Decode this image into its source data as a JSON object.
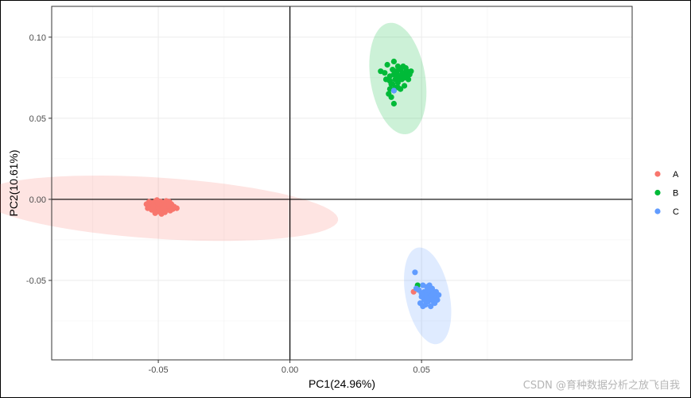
{
  "chart_data": {
    "type": "scatter",
    "title": "",
    "xlabel": "PC1(24.96%)",
    "ylabel": "PC2(10.61%)",
    "xlim": [
      -0.0905,
      0.13
    ],
    "ylim": [
      -0.099,
      0.119
    ],
    "x_ticks": [
      -0.05,
      0.0,
      0.05
    ],
    "x_tick_labels": [
      "-0.05",
      "0.00",
      "0.05"
    ],
    "y_ticks": [
      0.1,
      0.05,
      0.0,
      -0.05
    ],
    "y_tick_labels": [
      "0.10",
      "0.05",
      "0.00",
      "-0.05"
    ],
    "grid": true,
    "reference_lines": {
      "x": 0,
      "y": 0
    },
    "legend_position": "right",
    "series": [
      {
        "name": "A",
        "color": "#F8766D",
        "ellipse": {
          "center": [
            -0.0498,
            -0.0055
          ],
          "semi_major": 0.0685,
          "semi_minor": 0.0188,
          "angle_deg": -6.3
        },
        "points": [
          [
            -0.0545,
            -0.003
          ],
          [
            -0.053,
            -0.0045
          ],
          [
            -0.052,
            -0.002
          ],
          [
            -0.0515,
            -0.006
          ],
          [
            -0.051,
            -0.001
          ],
          [
            -0.0505,
            -0.004
          ],
          [
            -0.05,
            -0.0075
          ],
          [
            -0.05,
            -0.0025
          ],
          [
            -0.0495,
            -0.005
          ],
          [
            -0.049,
            -0.0015
          ],
          [
            -0.0485,
            -0.0065
          ],
          [
            -0.048,
            -0.0035
          ],
          [
            -0.0475,
            -0.008
          ],
          [
            -0.047,
            -0.002
          ],
          [
            -0.0465,
            -0.0055
          ],
          [
            -0.046,
            -0.004
          ],
          [
            -0.0455,
            -0.007
          ],
          [
            -0.045,
            -0.003
          ],
          [
            -0.0445,
            -0.006
          ],
          [
            -0.044,
            -0.0045
          ],
          [
            -0.0525,
            -0.0065
          ],
          [
            -0.0535,
            -0.0015
          ],
          [
            -0.0512,
            -0.0085
          ],
          [
            -0.0488,
            -0.009
          ],
          [
            -0.047,
            -0.001
          ],
          [
            -0.052,
            -0.004
          ],
          [
            -0.0495,
            -0.003
          ],
          [
            -0.0478,
            -0.005
          ],
          [
            -0.0505,
            -0.0005
          ],
          [
            -0.0458,
            -0.0015
          ],
          [
            -0.054,
            -0.0055
          ],
          [
            -0.043,
            -0.0055
          ],
          [
            0.047,
            -0.057
          ]
        ]
      },
      {
        "name": "B",
        "color": "#00BA38",
        "ellipse": {
          "center": [
            0.041,
            0.0745
          ],
          "semi_major": 0.0345,
          "semi_minor": 0.0105,
          "angle_deg": 94.8
        },
        "points": [
          [
            0.036,
            0.078
          ],
          [
            0.037,
            0.083
          ],
          [
            0.038,
            0.076
          ],
          [
            0.0385,
            0.071
          ],
          [
            0.039,
            0.08
          ],
          [
            0.0395,
            0.085
          ],
          [
            0.04,
            0.074
          ],
          [
            0.04,
            0.069
          ],
          [
            0.0405,
            0.078
          ],
          [
            0.041,
            0.082
          ],
          [
            0.041,
            0.072
          ],
          [
            0.0415,
            0.076
          ],
          [
            0.042,
            0.08
          ],
          [
            0.042,
            0.068
          ],
          [
            0.0425,
            0.074
          ],
          [
            0.043,
            0.078
          ],
          [
            0.043,
            0.082
          ],
          [
            0.0435,
            0.07
          ],
          [
            0.044,
            0.076
          ],
          [
            0.0445,
            0.079
          ],
          [
            0.045,
            0.074
          ],
          [
            0.0455,
            0.077
          ],
          [
            0.046,
            0.079
          ],
          [
            0.0375,
            0.065
          ],
          [
            0.0385,
            0.063
          ],
          [
            0.0395,
            0.059
          ],
          [
            0.038,
            0.073
          ],
          [
            0.0405,
            0.075
          ],
          [
            0.0415,
            0.081
          ],
          [
            0.0425,
            0.077
          ],
          [
            0.039,
            0.071
          ],
          [
            0.0435,
            0.075
          ],
          [
            0.038,
            0.068
          ],
          [
            0.04,
            0.079
          ],
          [
            0.042,
            0.075
          ],
          [
            0.041,
            0.069
          ],
          [
            0.0345,
            0.079
          ],
          [
            0.0365,
            0.074
          ],
          [
            0.044,
            0.081
          ],
          [
            0.0395,
            0.077
          ],
          [
            0.0485,
            -0.053
          ]
        ]
      },
      {
        "name": "C",
        "color": "#619CFF",
        "ellipse": {
          "center": [
            0.0523,
            -0.0595
          ],
          "semi_major": 0.03,
          "semi_minor": 0.0084,
          "angle_deg": 96.3
        },
        "points": [
          [
            0.049,
            -0.056
          ],
          [
            0.05,
            -0.06
          ],
          [
            0.0505,
            -0.053
          ],
          [
            0.051,
            -0.062
          ],
          [
            0.051,
            -0.057
          ],
          [
            0.0515,
            -0.065
          ],
          [
            0.052,
            -0.059
          ],
          [
            0.052,
            -0.054
          ],
          [
            0.0525,
            -0.063
          ],
          [
            0.053,
            -0.057
          ],
          [
            0.053,
            -0.061
          ],
          [
            0.0535,
            -0.066
          ],
          [
            0.054,
            -0.059
          ],
          [
            0.054,
            -0.055
          ],
          [
            0.0545,
            -0.063
          ],
          [
            0.055,
            -0.06
          ],
          [
            0.0555,
            -0.057
          ],
          [
            0.056,
            -0.062
          ],
          [
            0.0565,
            -0.059
          ],
          [
            0.0495,
            -0.064
          ],
          [
            0.05,
            -0.058
          ],
          [
            0.0515,
            -0.06
          ],
          [
            0.0525,
            -0.056
          ],
          [
            0.0535,
            -0.06
          ],
          [
            0.0545,
            -0.058
          ],
          [
            0.0505,
            -0.066
          ],
          [
            0.055,
            -0.064
          ],
          [
            0.052,
            -0.061
          ],
          [
            0.053,
            -0.053
          ],
          [
            0.054,
            -0.062
          ],
          [
            0.0475,
            -0.045
          ],
          [
            0.048,
            -0.055
          ],
          [
            0.0395,
            0.067
          ]
        ]
      }
    ]
  },
  "watermark": "CSDN @育种数据分析之放飞自我"
}
